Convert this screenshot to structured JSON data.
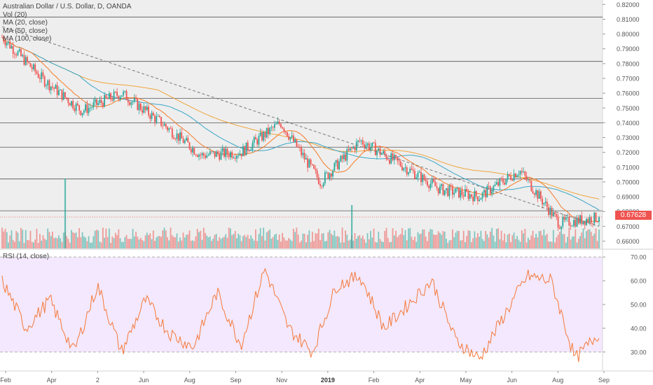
{
  "legend": {
    "symbol": "Australian Dollar / U.S. Dollar, D, OANDA",
    "vol": "Vol (20)",
    "ma20": "MA (20, close)",
    "ma50": "MA (50, close)",
    "ma100": "MA (100, close)"
  },
  "rsi_label": "RSI (14, close)",
  "last_price": "0.67628",
  "colors": {
    "up": "#26a69a",
    "down": "#ef5350",
    "ma20": "#f57c2a",
    "ma50": "#3aa6c7",
    "ma100": "#f0a53c",
    "rsi": "#f5793a",
    "rsi_band": "#f3e8fd",
    "panel_bg": "#eeeeee",
    "price_tag": "#ef5350"
  },
  "chart_data": [
    {
      "type": "candlestick",
      "title": "Australian Dollar / U.S. Dollar, D, OANDA",
      "price_ticks": [
        "0.82000",
        "0.81000",
        "0.80000",
        "0.79000",
        "0.78000",
        "0.77000",
        "0.76000",
        "0.75000",
        "0.74000",
        "0.73000",
        "0.72000",
        "0.71000",
        "0.70000",
        "0.69000",
        "0.68000",
        "0.67000",
        "0.66000"
      ],
      "time_ticks": [
        "Feb",
        "Apr",
        "2",
        "Jun",
        "Aug",
        "Sep",
        "Nov",
        "2019",
        "Feb",
        "Apr",
        "May",
        "Jun",
        "Aug",
        "Sep"
      ],
      "ylim": [
        0.655,
        0.823
      ],
      "horizontal_levels": [
        0.8115,
        0.7815,
        0.7565,
        0.74,
        0.7235,
        0.702,
        0.6805
      ],
      "trendline": {
        "from": {
          "date": "Feb 2018",
          "value": 0.805
        },
        "to": {
          "date": "Aug 2019",
          "value": 0.67
        }
      },
      "anchors": [
        {
          "label": "Feb",
          "value": 0.798
        },
        {
          "label": "Apr",
          "value": 0.77
        },
        {
          "label": "2",
          "value": 0.748
        },
        {
          "label": "Jun",
          "value": 0.76
        },
        {
          "label": "Aug",
          "value": 0.74
        },
        {
          "label": "Sep",
          "value": 0.718
        },
        {
          "label": "Nov",
          "value": 0.72
        },
        {
          "label": "Dec",
          "value": 0.74
        },
        {
          "label": "2019",
          "value": 0.7
        },
        {
          "label": "Feb",
          "value": 0.728
        },
        {
          "label": "Apr",
          "value": 0.712
        },
        {
          "label": "May",
          "value": 0.695
        },
        {
          "label": "Jun",
          "value": 0.69
        },
        {
          "label": "Jul",
          "value": 0.708
        },
        {
          "label": "Aug",
          "value": 0.672
        },
        {
          "label": "Aug",
          "value": 0.676
        }
      ],
      "last": 0.67628,
      "volume_spikes": [
        {
          "label": "Apr",
          "value": 5.0
        },
        {
          "label": "Jan 2019",
          "value": 3.1
        }
      ]
    },
    {
      "type": "line",
      "title": "RSI (14, close)",
      "ticks": [
        "70.00",
        "60.00",
        "50.00",
        "40.00",
        "30.00"
      ],
      "ylim": [
        22,
        73
      ],
      "band": [
        30,
        70
      ],
      "anchors": [
        {
          "label": "Feb",
          "value": 60
        },
        {
          "label": "Mar",
          "value": 40
        },
        {
          "label": "Apr",
          "value": 52
        },
        {
          "label": "Apr",
          "value": 30
        },
        {
          "label": "May",
          "value": 58
        },
        {
          "label": "Jun",
          "value": 30
        },
        {
          "label": "Jul",
          "value": 52
        },
        {
          "label": "Aug",
          "value": 38
        },
        {
          "label": "Aug",
          "value": 32
        },
        {
          "label": "Sep",
          "value": 55
        },
        {
          "label": "Oct",
          "value": 33
        },
        {
          "label": "Nov",
          "value": 65
        },
        {
          "label": "Dec",
          "value": 40
        },
        {
          "label": "2019",
          "value": 30
        },
        {
          "label": "Jan",
          "value": 58
        },
        {
          "label": "Feb",
          "value": 62
        },
        {
          "label": "Mar",
          "value": 40
        },
        {
          "label": "Apr",
          "value": 50
        },
        {
          "label": "Apr",
          "value": 60
        },
        {
          "label": "May",
          "value": 35
        },
        {
          "label": "May",
          "value": 27
        },
        {
          "label": "Jun",
          "value": 45
        },
        {
          "label": "Jul",
          "value": 62
        },
        {
          "label": "Jul",
          "value": 60
        },
        {
          "label": "Aug",
          "value": 27
        },
        {
          "label": "Aug",
          "value": 38
        }
      ]
    }
  ]
}
